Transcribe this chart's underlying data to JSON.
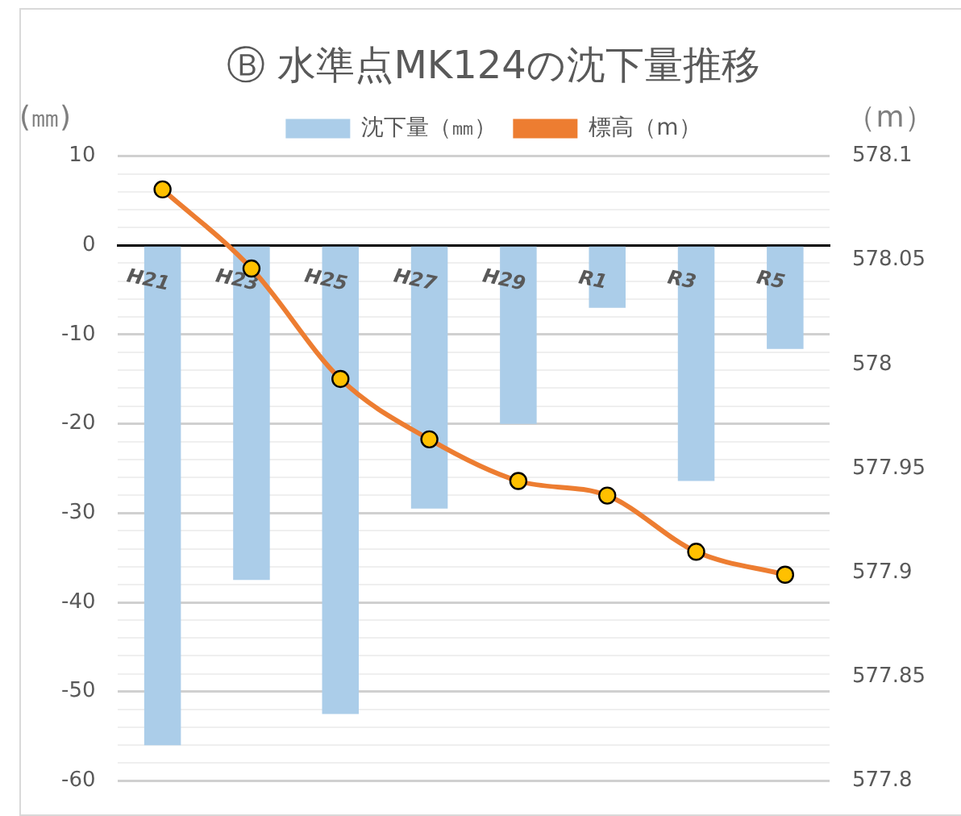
{
  "chart_data": {
    "type": "bar",
    "title": "Ⓑ 水準点MK124の沈下量推移",
    "ylabel": "(㎜)",
    "y2label": "（m）",
    "categories": [
      "H21",
      "H23",
      "H25",
      "H27",
      "H29",
      "R1",
      "R3",
      "R5"
    ],
    "series": [
      {
        "name": "沈下量（㎜）",
        "color": "#abcde9",
        "values": [
          -56,
          -37.5,
          -52.5,
          -29.5,
          -20,
          -7,
          -26.4,
          -11.6
        ]
      },
      {
        "name": "標高（m）",
        "type": "line",
        "axis": "y2",
        "color": "#ed7d31",
        "marker": "circle",
        "values": [
          578.084,
          578.046,
          577.993,
          577.964,
          577.944,
          577.937,
          577.91,
          577.899
        ]
      }
    ],
    "ylim": [
      -60,
      10
    ],
    "yticks": [
      -60,
      {
        "value": -58,
        "label": null
      },
      {
        "value": -56,
        "label": null
      },
      {
        "value": -54,
        "label": null
      },
      {
        "value": -52,
        "label": null
      },
      -50,
      {
        "value": -48,
        "label": null
      },
      {
        "value": -46,
        "label": null
      },
      {
        "value": -44,
        "label": null
      },
      {
        "value": -42,
        "label": null
      },
      -40,
      {
        "value": -38,
        "label": null
      },
      {
        "value": -36,
        "label": null
      },
      {
        "value": -34,
        "label": null
      },
      {
        "value": -32,
        "label": null
      },
      -30,
      {
        "value": -28,
        "label": null
      },
      {
        "value": -26,
        "label": null
      },
      {
        "value": -24,
        "label": null
      },
      {
        "value": -22,
        "label": null
      },
      -20,
      {
        "value": -18,
        "label": null
      },
      {
        "value": -16,
        "label": null
      },
      {
        "value": -14,
        "label": null
      },
      {
        "value": -12,
        "label": null
      },
      -10,
      {
        "value": -8,
        "label": null
      },
      {
        "value": -6,
        "label": null
      },
      {
        "value": -4,
        "label": null
      },
      {
        "value": -2,
        "label": null
      },
      0,
      {
        "value": 2,
        "label": null
      },
      {
        "value": 4,
        "label": null
      },
      {
        "value": 6,
        "label": null
      },
      {
        "value": 8,
        "label": null
      },
      10
    ],
    "y2lim": [
      577.8,
      578.1
    ],
    "y2ticks": [
      577.8,
      577.85,
      577.9,
      577.95,
      578,
      578.05,
      578.1
    ],
    "grid": "y",
    "legend": "top"
  }
}
